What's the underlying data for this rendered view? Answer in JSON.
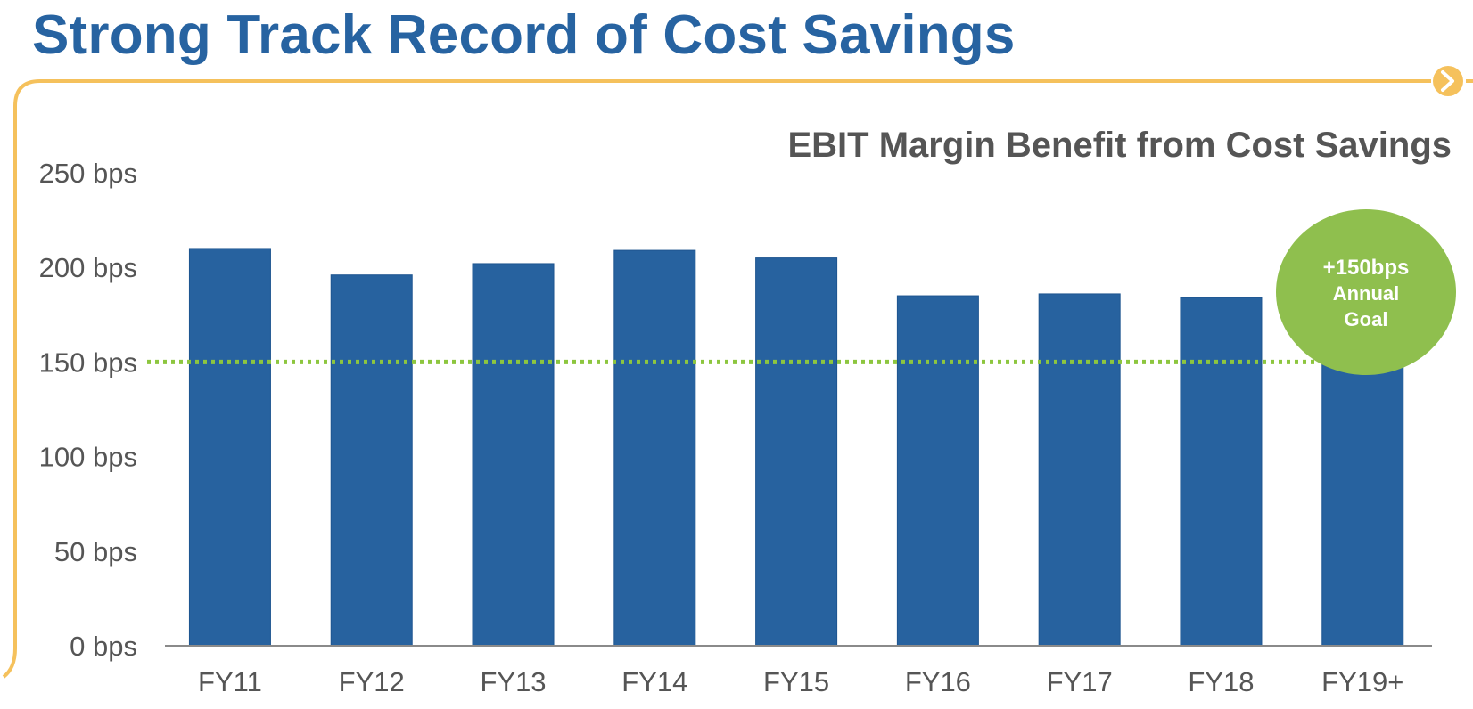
{
  "slide": {
    "title": "Strong Track Record of Cost Savings"
  },
  "colors": {
    "title": "#2763a1",
    "bar": "#27629f",
    "frame": "#f5c15c",
    "goal_line": "#8dc63f",
    "goal_badge": "#8fbf4e",
    "axis_text": "#555555"
  },
  "icons": {
    "next": "chevron-right-circle-icon"
  },
  "chart_data": {
    "type": "bar",
    "title": "EBIT Margin Benefit from Cost Savings",
    "categories": [
      "FY11",
      "FY12",
      "FY13",
      "FY14",
      "FY15",
      "FY16",
      "FY17",
      "FY18",
      "FY19+"
    ],
    "values": [
      210,
      196,
      202,
      209,
      205,
      185,
      186,
      184,
      150
    ],
    "ylim": [
      0,
      250
    ],
    "yticks": [
      0,
      50,
      100,
      150,
      200,
      250
    ],
    "ytick_labels": [
      "0 bps",
      "50 bps",
      "100 bps",
      "150 bps",
      "200 bps",
      "250 bps"
    ],
    "grid": false,
    "reference_line": {
      "value": 150,
      "style": "dotted"
    },
    "annotation": {
      "lines": [
        "+150bps",
        "Annual",
        "Goal"
      ]
    }
  }
}
